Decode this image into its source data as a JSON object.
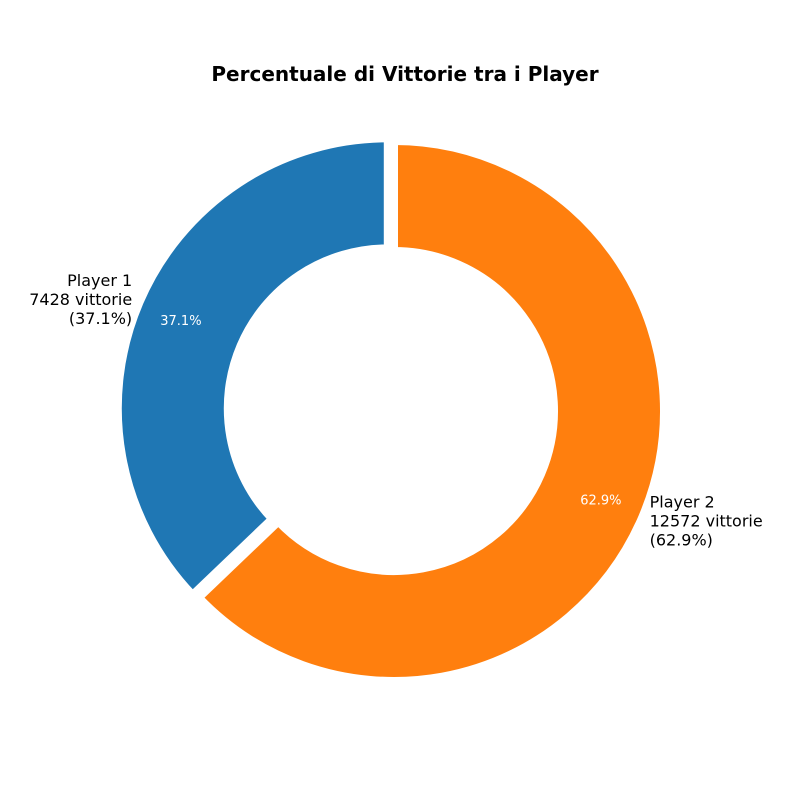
{
  "chart_data": {
    "type": "pie",
    "style": "donut",
    "title": "Percentuale di Vittorie tra i Player",
    "start_angle_deg": 90,
    "direction": "counterclockwise",
    "slices": [
      {
        "name": "Player 1",
        "value": 7428,
        "value_text": "7428 vittorie",
        "percent": 37.1,
        "percent_text": "(37.1%)",
        "inner_label": "37.1%",
        "color": "#1f77b4",
        "explode": 0.1
      },
      {
        "name": "Player 2",
        "value": 12572,
        "value_text": "12572 vittorie",
        "percent": 62.9,
        "percent_text": "(62.9%)",
        "inner_label": "62.9%",
        "color": "#ff7f0e",
        "explode": 0
      }
    ],
    "legend": false,
    "grid": false
  }
}
